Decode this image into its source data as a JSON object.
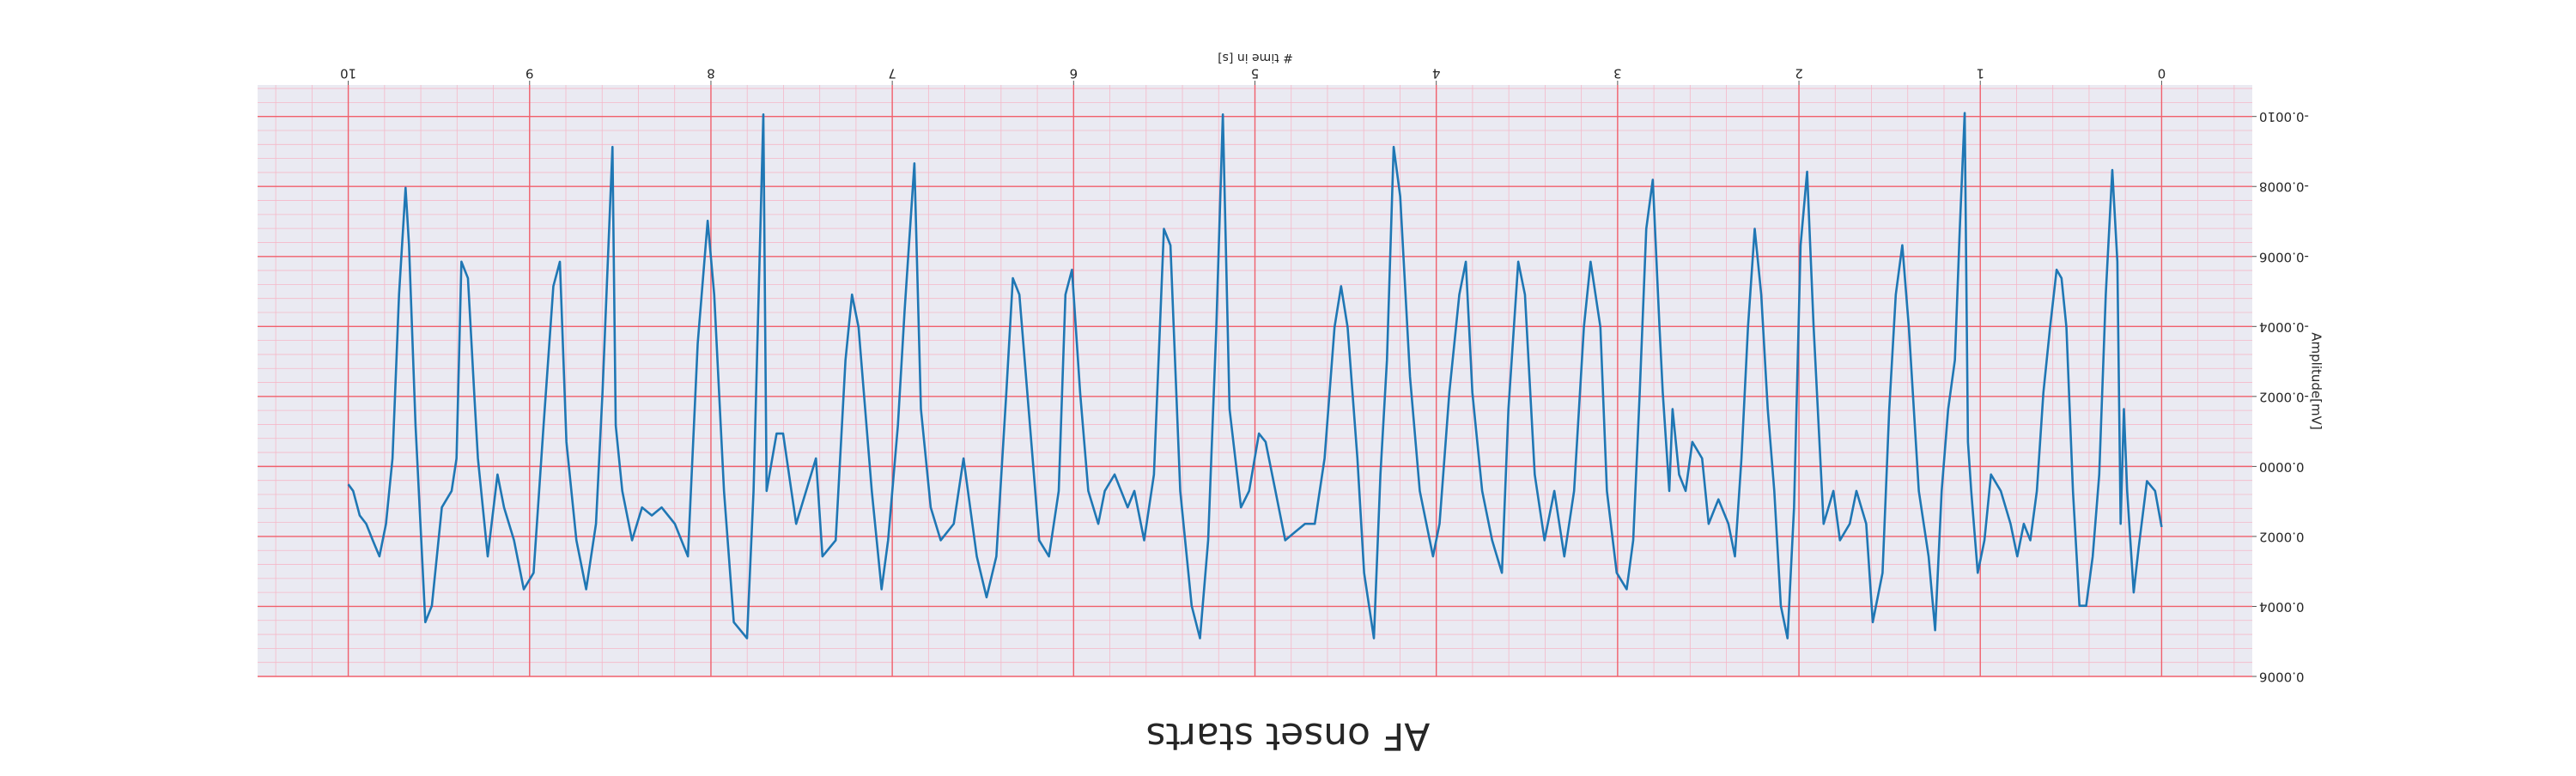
{
  "chart_data": {
    "type": "line",
    "title": "AF onset starts",
    "xlabel": "# time in [s]",
    "ylabel": "Amplitude[mV]",
    "color": "#1f77b4",
    "grid": true,
    "rotated_180": true,
    "xlim": [
      -0.5,
      10.5
    ],
    "ylim": [
      -0.00109,
      0.0006
    ],
    "xticks": [
      0,
      1,
      2,
      3,
      4,
      5,
      6,
      7,
      8,
      9,
      10
    ],
    "yticks": [
      {
        "value": -0.001,
        "label": "-0.0010"
      },
      -0.0008,
      -0.0006,
      -0.0004,
      -0.0002,
      {
        "value": 0,
        "label": "0.0000"
      },
      0.0002,
      0.0004,
      0.0006
    ],
    "x": [
      0,
      0.036,
      0.081,
      0.127,
      0.154,
      0.19,
      0.208,
      0.226,
      0.244,
      0.272,
      0.308,
      0.344,
      0.38,
      0.416,
      0.453,
      0.489,
      0.525,
      0.552,
      0.579,
      0.615,
      0.652,
      0.688,
      0.724,
      0.76,
      0.796,
      0.833,
      0.887,
      0.941,
      0.977,
      1.014,
      1.05,
      1.068,
      1.086,
      1.113,
      1.14,
      1.177,
      1.213,
      1.249,
      1.285,
      1.339,
      1.394,
      1.43,
      1.466,
      1.502,
      1.539,
      1.593,
      1.629,
      1.683,
      1.72,
      1.774,
      1.81,
      1.864,
      1.919,
      1.955,
      1.991,
      2.027,
      2.063,
      2.1,
      2.136,
      2.172,
      2.208,
      2.244,
      2.281,
      2.317,
      2.353,
      2.389,
      2.444,
      2.498,
      2.534,
      2.588,
      2.625,
      2.661,
      2.697,
      2.715,
      2.751,
      2.769,
      2.806,
      2.842,
      2.878,
      2.914,
      2.95,
      3.005,
      3.059,
      3.095,
      3.149,
      3.186,
      3.24,
      3.294,
      3.349,
      3.403,
      3.457,
      3.511,
      3.548,
      3.602,
      3.638,
      3.692,
      3.747,
      3.801,
      3.837,
      3.873,
      3.928,
      3.982,
      4.018,
      4.091,
      4.145,
      4.199,
      4.235,
      4.272,
      4.308,
      4.344,
      4.398,
      4.435,
      4.489,
      4.525,
      4.561,
      4.616,
      4.67,
      4.724,
      4.778,
      4.833,
      4.887,
      4.941,
      4.978,
      5.032,
      5.077,
      5.14,
      5.177,
      5.213,
      5.258,
      5.303,
      5.349,
      5.412,
      5.466,
      5.502,
      5.557,
      5.611,
      5.665,
      5.702,
      5.774,
      5.828,
      5.864,
      5.919,
      5.964,
      6.009,
      6.045,
      6.082,
      6.136,
      6.19,
      6.226,
      6.299,
      6.335,
      6.371,
      6.426,
      6.48,
      6.534,
      6.607,
      6.661,
      6.733,
      6.788,
      6.842,
      6.878,
      6.932,
      6.969,
      7.023,
      7.059,
      7.113,
      7.186,
      7.222,
      7.258,
      7.312,
      7.385,
      7.421,
      7.475,
      7.53,
      7.602,
      7.638,
      7.693,
      7.711,
      7.765,
      7.801,
      7.874,
      7.928,
      7.982,
      8.018,
      8.073,
      8.127,
      8.199,
      8.272,
      8.326,
      8.38,
      8.435,
      8.489,
      8.525,
      8.543,
      8.598,
      8.634,
      8.688,
      8.742,
      8.797,
      8.833,
      8.869,
      8.923,
      8.978,
      9.032,
      9.086,
      9.141,
      9.177,
      9.231,
      9.285,
      9.303,
      9.34,
      9.376,
      9.403,
      9.43,
      9.484,
      9.539,
      9.575,
      9.629,
      9.665,
      9.684,
      9.72,
      9.756,
      9.792,
      9.828,
      9.865,
      9.901,
      9.937,
      9.973,
      10.0
    ],
    "values": [
      0.000173,
      7e-05,
      4.2e-05,
      0.000234,
      0.00036,
      7e-05,
      -0.000164,
      0.000164,
      -0.000585,
      -0.000847,
      -0.000491,
      2.3e-05,
      0.000257,
      0.000398,
      0.000398,
      7e-05,
      -0.000398,
      -0.000538,
      -0.000562,
      -0.000398,
      -0.000211,
      7e-05,
      0.000211,
      0.000164,
      0.000257,
      0.000164,
      7e-05,
      2.3e-05,
      0.000211,
      0.000304,
      7e-05,
      -7e-05,
      -0.00101,
      -0.000679,
      -0.000304,
      -0.000164,
      7e-05,
      0.000468,
      0.000257,
      7e-05,
      -0.000398,
      -0.000632,
      -0.000491,
      -0.000164,
      0.000304,
      0.000445,
      0.000164,
      7e-05,
      0.000164,
      0.000211,
      7e-05,
      0.000164,
      -0.000398,
      -0.000842,
      -0.000632,
      0.000117,
      0.000491,
      0.000398,
      7e-05,
      -0.000164,
      -0.000491,
      -0.000679,
      -0.000398,
      -2.3e-05,
      0.000257,
      0.000164,
      9.4e-05,
      0.000164,
      -2.3e-05,
      -7e-05,
      7e-05,
      2.3e-05,
      -0.000164,
      7e-05,
      -0.000211,
      -0.000398,
      -0.000819,
      -0.000679,
      -0.000211,
      0.000211,
      0.000351,
      0.000304,
      7e-05,
      -0.000398,
      -0.000585,
      -0.000398,
      7e-05,
      0.000257,
      7e-05,
      0.000211,
      2.3e-05,
      -0.000491,
      -0.000585,
      -0.000164,
      0.000304,
      0.000211,
      7e-05,
      -0.000211,
      -0.000585,
      -0.000491,
      -0.000211,
      0.000164,
      0.000257,
      7e-05,
      -0.000257,
      -0.000772,
      -0.000913,
      -0.000304,
      2.3e-05,
      0.000491,
      0.000304,
      -2.3e-05,
      -0.000398,
      -0.000515,
      -0.000398,
      -2.3e-05,
      0.000164,
      0.000164,
      0.000187,
      0.000211,
      7e-05,
      -7e-05,
      -9.4e-05,
      7e-05,
      0.000117,
      -0.000164,
      -0.001006,
      -0.000398,
      0.000211,
      0.000491,
      0.000398,
      7e-05,
      -0.000632,
      -0.000679,
      2.3e-05,
      0.000211,
      7e-05,
      0.000117,
      2.3e-05,
      7e-05,
      0.000164,
      7e-05,
      -0.000211,
      -0.000562,
      -0.000491,
      7e-05,
      0.000257,
      0.000211,
      -2.3e-05,
      -0.000491,
      -0.000538,
      -0.000211,
      0.000257,
      0.000374,
      0.000257,
      -2.3e-05,
      0.000164,
      0.000211,
      0.000117,
      -0.000164,
      -0.000866,
      -0.000445,
      -0.000117,
      0.000211,
      0.000351,
      7e-05,
      -0.000398,
      -0.000491,
      -0.000304,
      0.000211,
      0.000257,
      -2.3e-05,
      7e-05,
      0.000164,
      -9.4e-05,
      -9.4e-05,
      7e-05,
      -0.001006,
      7e-05,
      0.000491,
      0.000445,
      7e-05,
      -0.000491,
      -0.000702,
      -0.000351,
      0.000257,
      0.000164,
      0.000117,
      0.00014,
      0.000117,
      0.000211,
      7e-05,
      -0.000117,
      -0.000913,
      -0.000211,
      0.000164,
      0.000351,
      0.000211,
      -7e-05,
      -0.000585,
      -0.000515,
      -0.000117,
      0.000304,
      0.000351,
      0.000211,
      0.000117,
      2.3e-05,
      0.000257,
      -2.3e-05,
      -0.000187,
      -0.000538,
      -0.000585,
      -2.3e-05,
      7e-05,
      0.000117,
      0.000398,
      0.000445,
      -0.000117,
      -0.000632,
      -0.000796,
      -0.000491,
      -2.3e-05,
      0.000164,
      0.000257,
      0.000211,
      0.000164,
      0.00014,
      7e-05,
      5.1e-05
    ]
  }
}
